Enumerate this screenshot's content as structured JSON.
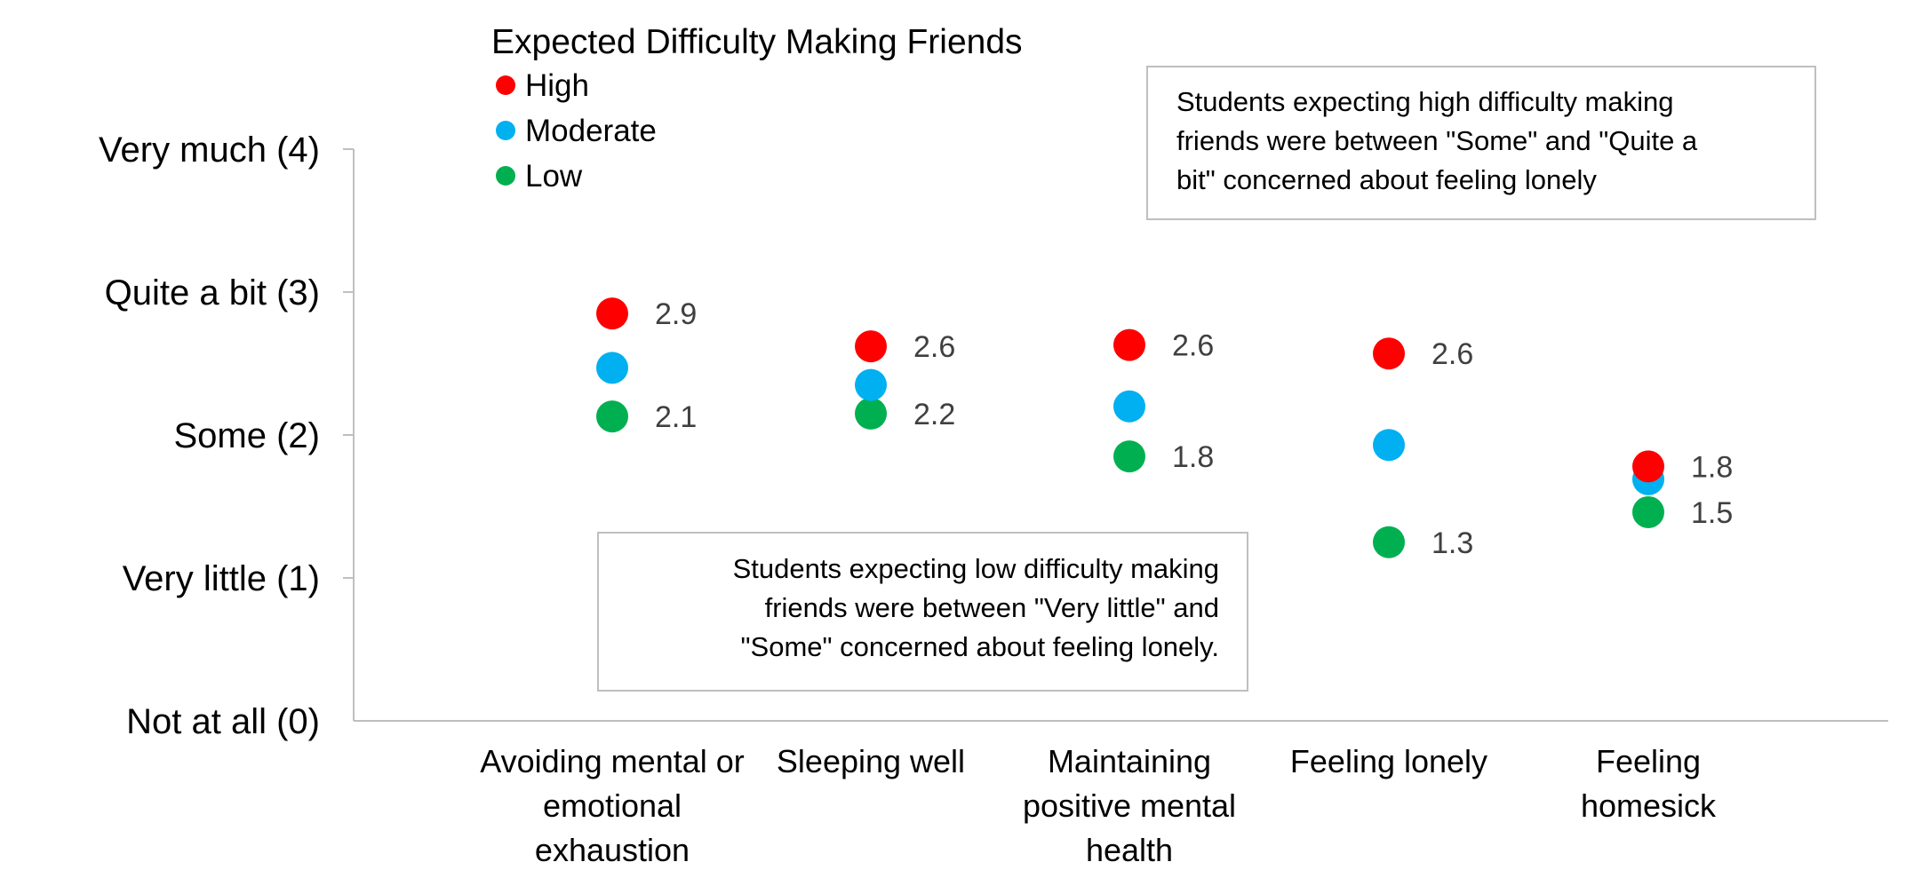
{
  "chart_data": {
    "type": "scatter",
    "title": "",
    "xlabel": "",
    "ylabel": "",
    "ylim": [
      0,
      4
    ],
    "y_ticks": [
      {
        "value": 0,
        "label": "Not at all (0)"
      },
      {
        "value": 1,
        "label": "Very little (1)"
      },
      {
        "value": 2,
        "label": "Some (2)"
      },
      {
        "value": 3,
        "label": "Quite a bit (3)"
      },
      {
        "value": 4,
        "label": "Very much (4)"
      }
    ],
    "categories": [
      "Avoiding mental or emotional exhaustion",
      "Sleeping well",
      "Maintaining positive mental health",
      "Feeling lonely",
      "Feeling homesick"
    ],
    "category_lines": [
      [
        "Avoiding mental or",
        "emotional",
        "exhaustion"
      ],
      [
        "Sleeping well"
      ],
      [
        "Maintaining",
        "positive mental",
        "health"
      ],
      [
        "Feeling lonely"
      ],
      [
        "Feeling",
        "homesick"
      ]
    ],
    "legend": {
      "title": "Expected Difficulty Making Friends",
      "position": "top-left"
    },
    "series": [
      {
        "name": "High",
        "color": "#ff0000",
        "values": [
          2.85,
          2.62,
          2.63,
          2.57,
          1.78
        ],
        "labels": [
          "2.9",
          "2.6",
          "2.6",
          "2.6",
          "1.8"
        ]
      },
      {
        "name": "Moderate",
        "color": "#00b0f0",
        "values": [
          2.47,
          2.35,
          2.2,
          1.93,
          1.69
        ],
        "labels": [
          "",
          "",
          "",
          "",
          ""
        ]
      },
      {
        "name": "Low",
        "color": "#00b050",
        "values": [
          2.13,
          2.15,
          1.85,
          1.25,
          1.46
        ],
        "labels": [
          "2.1",
          "2.2",
          "1.8",
          "1.3",
          "1.5"
        ]
      }
    ],
    "annotations": [
      {
        "lines": [
          "Students expecting high difficulty making",
          "friends were between \"Some\" and \"Quite a",
          "bit\" concerned about feeling lonely"
        ]
      },
      {
        "lines": [
          "Students expecting low difficulty making",
          "friends were between \"Very little\" and",
          "\"Some\" concerned about feeling lonely."
        ]
      }
    ],
    "grid": false
  }
}
